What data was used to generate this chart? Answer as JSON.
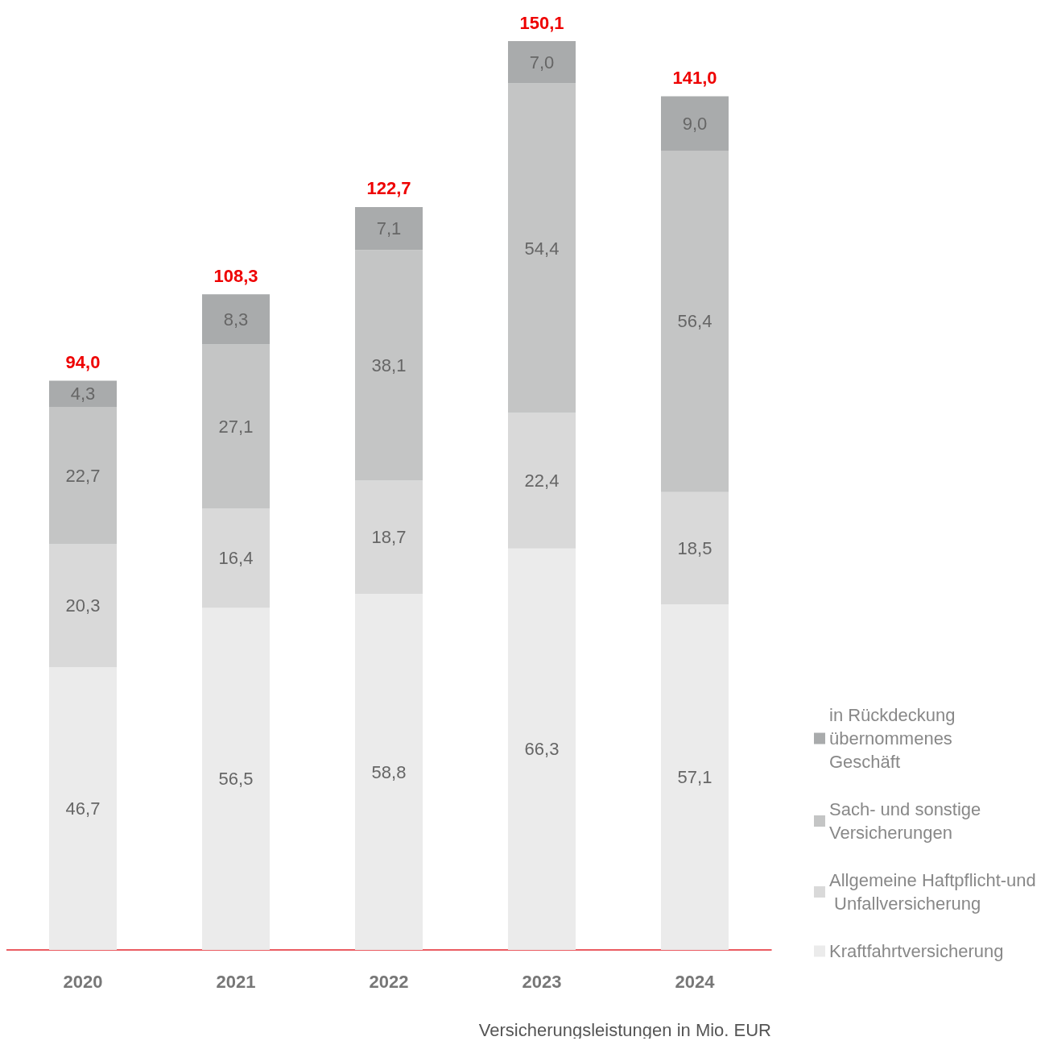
{
  "chart_data": {
    "type": "bar",
    "stacked": true,
    "legend": "right",
    "categories": [
      "2020",
      "2021",
      "2022",
      "2023",
      "2024"
    ],
    "series": [
      {
        "name": "Kraftfahrtversicherung",
        "color": "#ebebeb",
        "values": [
          46.7,
          56.5,
          58.8,
          66.3,
          57.1
        ],
        "value_labels": [
          "46,7",
          "56,5",
          "58,8",
          "66,3",
          "57,1"
        ]
      },
      {
        "name": "Allgemeine Haftpflicht-und Unfallversicherung",
        "color": "#d9d9d9",
        "values": [
          20.3,
          16.4,
          18.7,
          22.4,
          18.5
        ],
        "value_labels": [
          "20,3",
          "16,4",
          "18,7",
          "22,4",
          "18,5"
        ]
      },
      {
        "name": "Sach- und sonstige Versicherungen",
        "color": "#c4c5c5",
        "values": [
          22.7,
          27.1,
          38.1,
          54.4,
          56.4
        ],
        "value_labels": [
          "22,7",
          "27,1",
          "38,1",
          "54,4",
          "56,4"
        ]
      },
      {
        "name": "in Rückdeckung übernommenes Geschäft",
        "color": "#a9abac",
        "values": [
          4.3,
          8.3,
          7.1,
          7.0,
          9.0
        ],
        "value_labels": [
          "4,3",
          "8,3",
          "7,1",
          "7,0",
          "9,0"
        ]
      }
    ],
    "totals": [
      "94,0",
      "108,3",
      "122,7",
      "150,1",
      "141,0"
    ],
    "xlabel": "Versicherungsleistungen in Mio. EUR"
  }
}
